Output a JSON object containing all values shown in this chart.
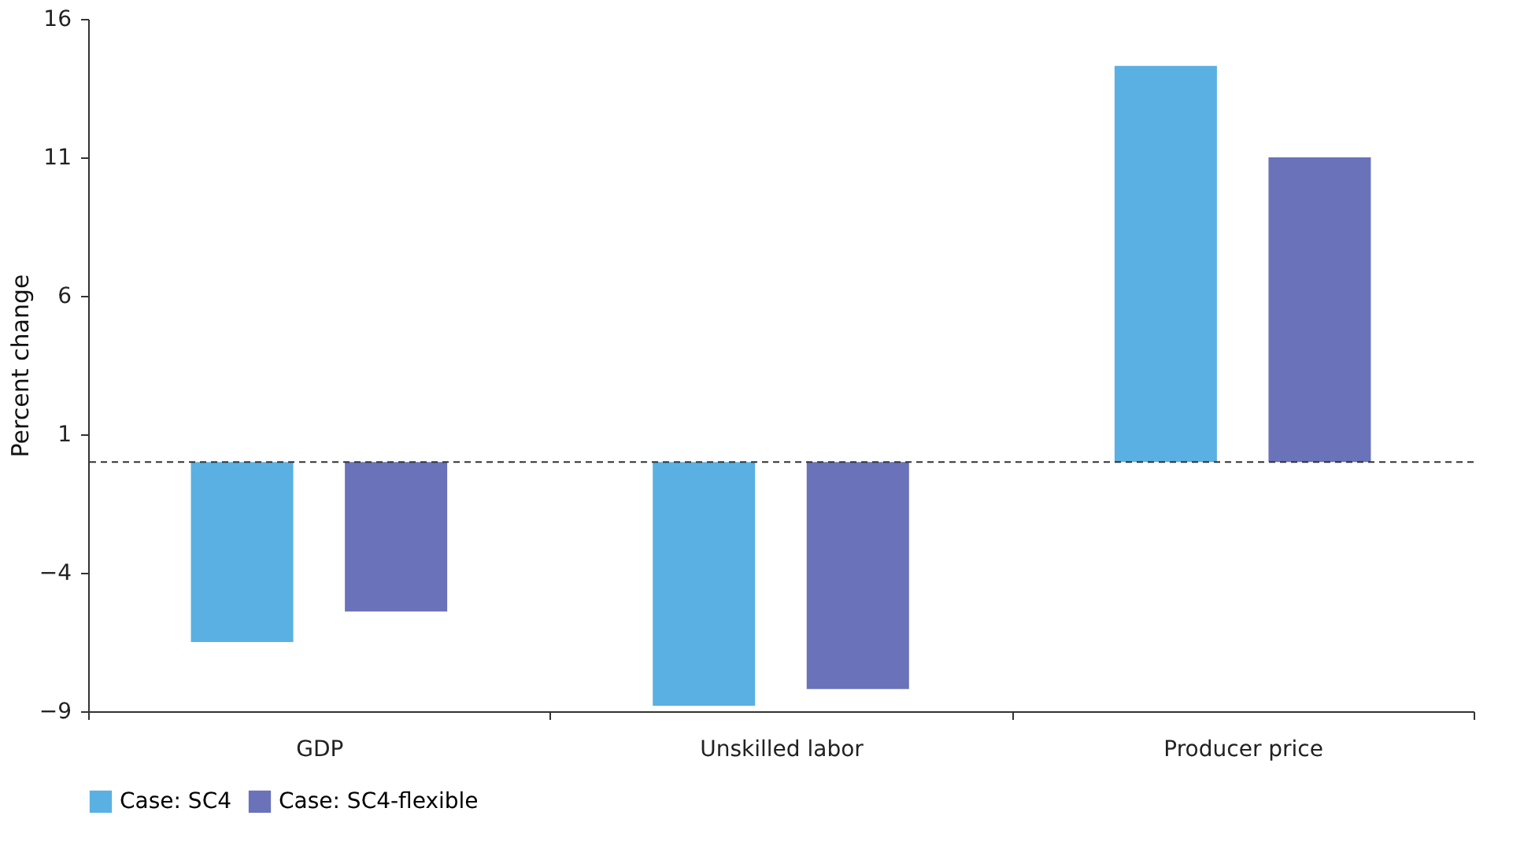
{
  "chart_data": {
    "type": "bar",
    "ylabel": "Percent change",
    "categories": [
      "GDP",
      "Unskilled labor",
      "Producer price"
    ],
    "series": [
      {
        "name": "Case: SC4",
        "color": "#5ab0e2",
        "values": [
          -6.5,
          -8.8,
          14.3
        ]
      },
      {
        "name": "Case: SC4-flexible",
        "color": "#6a72b9",
        "values": [
          -5.4,
          -8.2,
          11.0
        ]
      }
    ],
    "ylim": [
      -9,
      16
    ],
    "yticks": [
      -9,
      -4,
      1,
      6,
      11,
      16
    ],
    "grid": false,
    "legend": "bottom",
    "ref_lines": [
      {
        "axis": "y",
        "value": 0,
        "color": "#333333",
        "line_style": "dashed"
      }
    ]
  }
}
